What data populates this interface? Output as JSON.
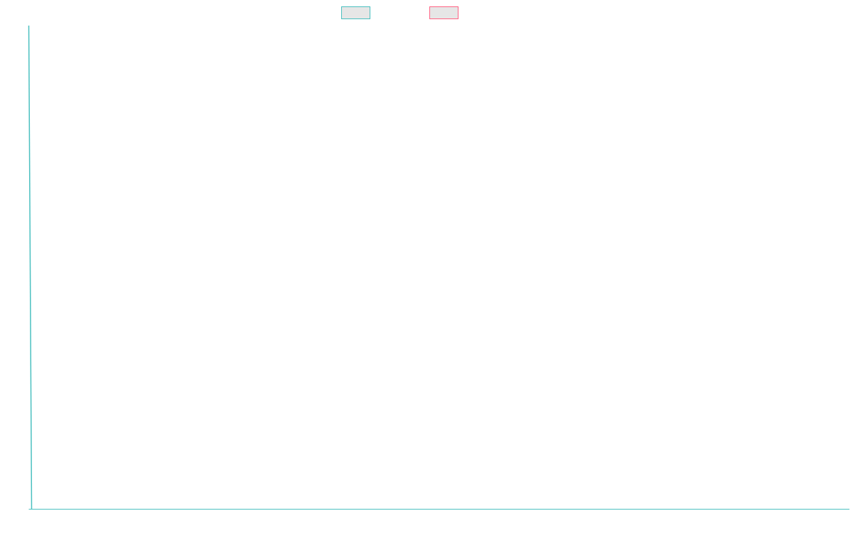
{
  "chart_data": {
    "type": "line",
    "title": "",
    "xlabel": "",
    "ylabel": "",
    "grid": false,
    "legend_position": "top-center",
    "series": [
      {
        "color": "#4bc0c0",
        "fill_color": "#e6e6e6",
        "x": [
          0,
          1
        ],
        "values": [
          100,
          0
        ]
      },
      {
        "color": "#ff6384",
        "fill_color": "#e6e6e6",
        "x": [],
        "values": []
      }
    ],
    "xlim": [
      0,
      290
    ],
    "ylim": [
      0,
      100
    ]
  }
}
